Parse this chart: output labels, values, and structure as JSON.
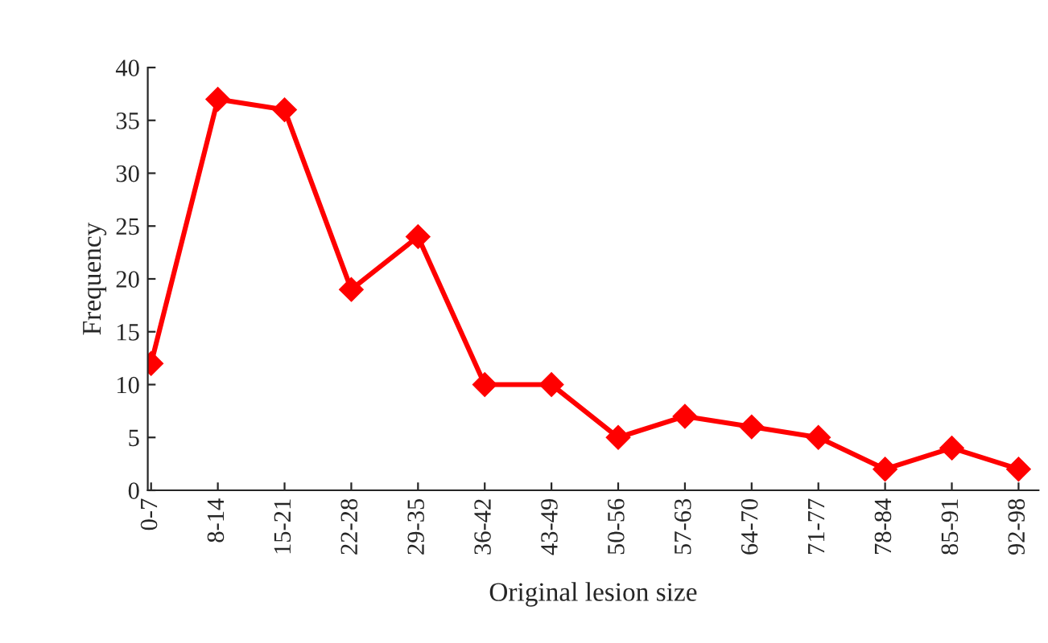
{
  "chart_data": {
    "type": "line",
    "xlabel": "Original lesion size",
    "ylabel": "Frequency",
    "categories": [
      "0-7",
      "8-14",
      "15-21",
      "22-28",
      "29-35",
      "36-42",
      "43-49",
      "50-56",
      "57-63",
      "64-70",
      "71-77",
      "78-84",
      "85-91",
      "92-98"
    ],
    "series": [
      {
        "color": "#ff0000",
        "values": [
          12,
          37,
          36,
          19,
          24,
          10,
          10,
          5,
          7,
          6,
          5,
          2,
          4,
          2
        ]
      }
    ],
    "ylim": [
      0,
      40
    ],
    "yticks": [
      0,
      5,
      10,
      15,
      20,
      25,
      30,
      35,
      40
    ],
    "grid": false,
    "legend": false,
    "marker": "diamond",
    "line_style": "solid"
  }
}
